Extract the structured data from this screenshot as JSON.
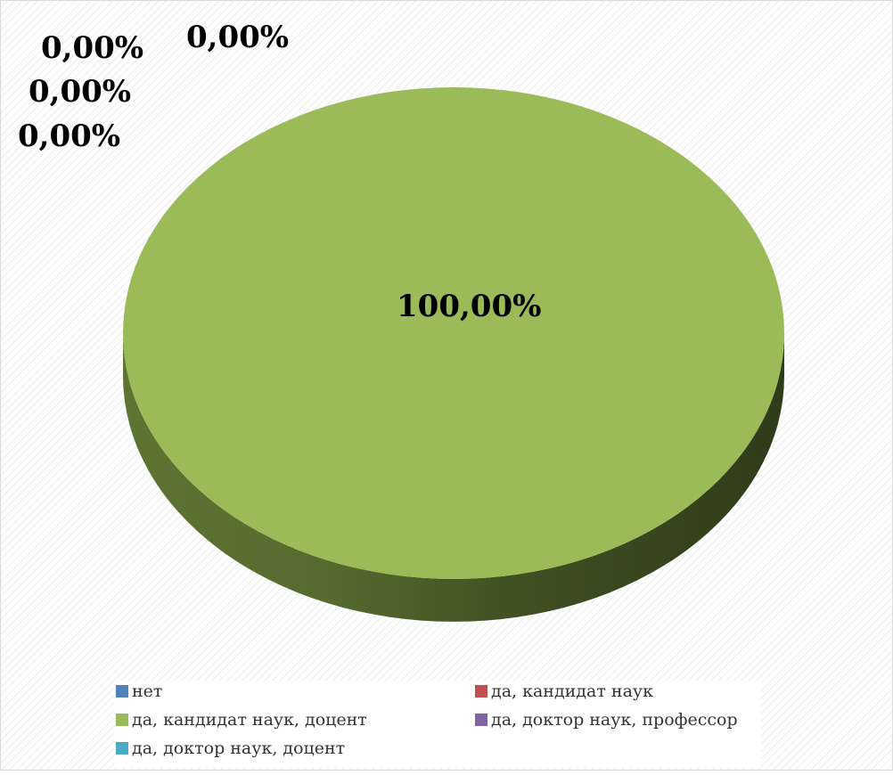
{
  "chart_data": {
    "type": "pie",
    "style": "3d",
    "title": "",
    "series": [
      {
        "name": "",
        "slices": [
          {
            "label": "нет",
            "value": 0,
            "display": "0,00%",
            "color": "#4F81BD"
          },
          {
            "label": "да, кандидат наук",
            "value": 0,
            "display": "0,00%",
            "color": "#C0504D"
          },
          {
            "label": "да, кандидат наук, доцент",
            "value": 100,
            "display": "100,00%",
            "color": "#9BBB59"
          },
          {
            "label": "да, доктор наук, профессор",
            "value": 0,
            "display": "0,00%",
            "color": "#8064A2"
          },
          {
            "label": "да, доктор наук, доцент",
            "value": 0,
            "display": "0,00%",
            "color": "#4BACC6"
          }
        ]
      }
    ],
    "legend_position": "bottom",
    "background": "diagonal-hatch"
  }
}
